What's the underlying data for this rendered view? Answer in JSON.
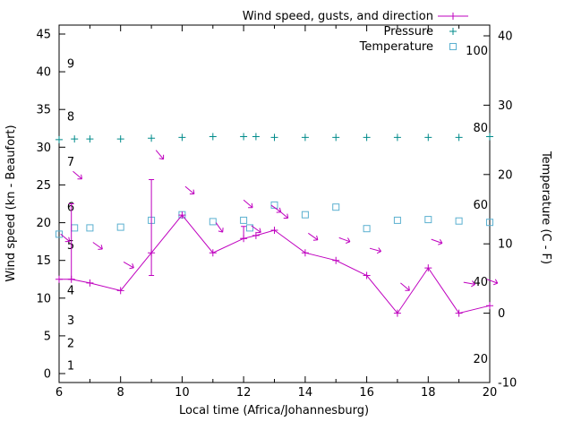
{
  "chart": {
    "xlabel": "Local time (Africa/Johannesburg)",
    "ylabel_left": "Wind speed (kn - Beaufort)",
    "ylabel_right": "Temperature (C - F)"
  },
  "colors": {
    "wind": "#bf00bf",
    "pressure": "#008b8b",
    "temperature": "#5bb0d0",
    "axis": "#000000",
    "background": "#ffffff"
  },
  "chart_data": {
    "type": "line",
    "grid": false,
    "legend_position": "top-center-inside",
    "x_axis": {
      "label": "Local time (Africa/Johannesburg)",
      "range": [
        6,
        20
      ],
      "major_ticks": [
        6,
        8,
        10,
        12,
        14,
        16,
        18,
        20
      ],
      "minor_ticks": [
        7,
        9,
        11,
        13,
        15,
        17,
        19
      ]
    },
    "y_axis_left": {
      "label": "Wind speed (kn - Beaufort)",
      "range": [
        0,
        45
      ],
      "ticks": [
        0,
        5,
        10,
        15,
        20,
        25,
        30,
        35,
        40,
        45
      ],
      "beaufort_labels": [
        {
          "bft": "1",
          "kn": 1
        },
        {
          "bft": "2",
          "kn": 4
        },
        {
          "bft": "3",
          "kn": 7
        },
        {
          "bft": "4",
          "kn": 11
        },
        {
          "bft": "5",
          "kn": 17
        },
        {
          "bft": "6",
          "kn": 22
        },
        {
          "bft": "7",
          "kn": 28
        },
        {
          "bft": "8",
          "kn": 34
        },
        {
          "bft": "9",
          "kn": 41
        }
      ]
    },
    "y_axis_right": {
      "label": "Temperature (C - F)",
      "range_c": [
        -10,
        40
      ],
      "ticks_c": [
        -10,
        0,
        10,
        20,
        30,
        40
      ],
      "fahrenheit_labels": [
        20,
        40,
        60,
        80,
        100
      ]
    },
    "series": [
      {
        "name": "wind",
        "label": "Wind speed, gusts, and direction",
        "axis": "left",
        "style": "line+markers",
        "marker": "plus",
        "color": "#bf00bf",
        "x": [
          6,
          6.4,
          7,
          8,
          9,
          10,
          11,
          12,
          12.4,
          13,
          14,
          15,
          16,
          17,
          18,
          19,
          20
        ],
        "values_kn": [
          12.5,
          12.5,
          12,
          11,
          16,
          21,
          16,
          17.9,
          18.3,
          19,
          16,
          15,
          13,
          8,
          14,
          8,
          9
        ],
        "gusts": [
          {
            "t": 6.4,
            "lo": 12.5,
            "hi": 22.5
          },
          {
            "t": 9,
            "lo": 13,
            "hi": 25.7
          },
          {
            "t": 12,
            "lo": 17.9,
            "hi": 19.5
          }
        ],
        "direction_arrows": [
          {
            "t": 6.05,
            "kn": 18.5,
            "deg": 40
          },
          {
            "t": 6.45,
            "kn": 26.8,
            "deg": 40
          },
          {
            "t": 7.1,
            "kn": 17.4,
            "deg": 35
          },
          {
            "t": 8.1,
            "kn": 14.8,
            "deg": 30
          },
          {
            "t": 9.15,
            "kn": 29.6,
            "deg": 50
          },
          {
            "t": 10.1,
            "kn": 24.8,
            "deg": 40
          },
          {
            "t": 11.1,
            "kn": 20.0,
            "deg": 55
          },
          {
            "t": 12.0,
            "kn": 23.0,
            "deg": 40
          },
          {
            "t": 12.25,
            "kn": 19.6,
            "deg": 35
          },
          {
            "t": 12.9,
            "kn": 22.3,
            "deg": 35
          },
          {
            "t": 13.15,
            "kn": 21.6,
            "deg": 40
          },
          {
            "t": 14.1,
            "kn": 18.6,
            "deg": 35
          },
          {
            "t": 15.1,
            "kn": 18.0,
            "deg": 20
          },
          {
            "t": 16.1,
            "kn": 16.6,
            "deg": 15
          },
          {
            "t": 17.1,
            "kn": 12.0,
            "deg": 40
          },
          {
            "t": 18.1,
            "kn": 17.8,
            "deg": 20
          },
          {
            "t": 19.15,
            "kn": 12.1,
            "deg": 10
          },
          {
            "t": 19.9,
            "kn": 12.5,
            "deg": 20
          }
        ]
      },
      {
        "name": "pressure",
        "label": "Pressure",
        "axis": "left",
        "style": "markers",
        "marker": "plus",
        "color": "#008b8b",
        "x": [
          6,
          6.5,
          7,
          8,
          9,
          10,
          11,
          12,
          12.4,
          13,
          14,
          15,
          16,
          17,
          18,
          19,
          20
        ],
        "values_kn_axis": [
          31,
          31.1,
          31.1,
          31.1,
          31.2,
          31.3,
          31.4,
          31.4,
          31.4,
          31.3,
          31.3,
          31.3,
          31.3,
          31.3,
          31.3,
          31.3,
          31.4
        ]
      },
      {
        "name": "temperature",
        "label": "Temperature",
        "axis": "right",
        "style": "markers",
        "marker": "open-square",
        "color": "#5bb0d0",
        "x": [
          6,
          6.5,
          7,
          8,
          9,
          10,
          11,
          12,
          12.2,
          13,
          14,
          15,
          16,
          17,
          18,
          19,
          20
        ],
        "values_c": [
          11.4,
          12.3,
          12.3,
          12.4,
          13.4,
          14.2,
          13.2,
          13.4,
          12.3,
          15.6,
          14.2,
          15.3,
          12.2,
          13.4,
          13.5,
          13.3,
          13.1
        ]
      }
    ]
  }
}
